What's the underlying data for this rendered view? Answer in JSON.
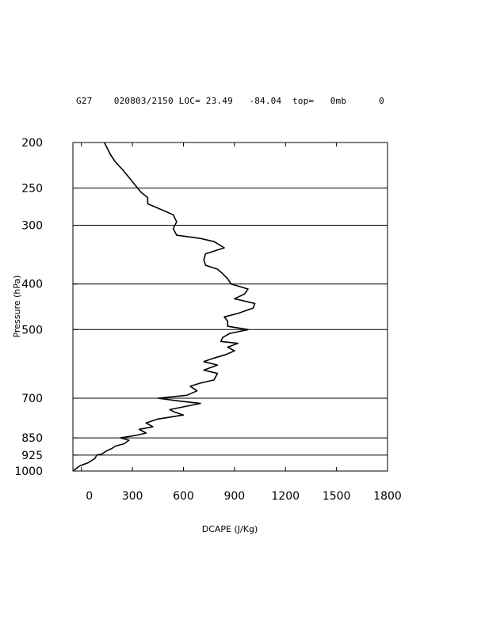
{
  "header": {
    "station": "G27",
    "datetime": "020803/2150",
    "loc_label": "LOC=",
    "lat": "23.49",
    "lon": "-84.04",
    "top_label": "top=",
    "top_value": "0mb",
    "trailing": "0"
  },
  "chart_data": {
    "type": "line",
    "title": "",
    "xlabel": "DCAPE (J/Kg)",
    "ylabel": "Pressure (hPa)",
    "xlim": [
      -50,
      1800
    ],
    "ylim": [
      1000,
      200
    ],
    "y_scale": "log",
    "x_ticks": [
      0,
      300,
      600,
      900,
      1200,
      1500,
      1800
    ],
    "x_tick_labels": [
      "0",
      "300",
      "600",
      "900",
      "1200",
      "1500",
      "1800"
    ],
    "y_ticks": [
      200,
      250,
      300,
      400,
      500,
      700,
      850,
      925,
      1000
    ],
    "y_tick_labels": [
      "200",
      "250",
      "300",
      "400",
      "500",
      "700",
      "850",
      "925",
      "1000"
    ],
    "gridlines_y": [
      250,
      300,
      400,
      500,
      700,
      850,
      925
    ],
    "series": [
      {
        "name": "",
        "color": "#000000",
        "points": [
          [
            -50,
            1000
          ],
          [
            -10,
            975
          ],
          [
            40,
            960
          ],
          [
            60,
            950
          ],
          [
            80,
            940
          ],
          [
            90,
            925
          ],
          [
            120,
            920
          ],
          [
            150,
            905
          ],
          [
            180,
            895
          ],
          [
            200,
            885
          ],
          [
            250,
            875
          ],
          [
            280,
            860
          ],
          [
            230,
            850
          ],
          [
            320,
            840
          ],
          [
            380,
            830
          ],
          [
            340,
            815
          ],
          [
            420,
            805
          ],
          [
            380,
            790
          ],
          [
            450,
            775
          ],
          [
            600,
            760
          ],
          [
            550,
            750
          ],
          [
            520,
            740
          ],
          [
            600,
            730
          ],
          [
            700,
            718
          ],
          [
            580,
            710
          ],
          [
            450,
            700
          ],
          [
            620,
            690
          ],
          [
            680,
            675
          ],
          [
            640,
            660
          ],
          [
            700,
            650
          ],
          [
            780,
            640
          ],
          [
            800,
            620
          ],
          [
            720,
            610
          ],
          [
            800,
            595
          ],
          [
            720,
            585
          ],
          [
            780,
            575
          ],
          [
            850,
            565
          ],
          [
            900,
            555
          ],
          [
            860,
            545
          ],
          [
            920,
            535
          ],
          [
            820,
            530
          ],
          [
            830,
            520
          ],
          [
            870,
            510
          ],
          [
            980,
            500
          ],
          [
            860,
            492
          ],
          [
            860,
            480
          ],
          [
            840,
            470
          ],
          [
            920,
            462
          ],
          [
            1010,
            450
          ],
          [
            1020,
            440
          ],
          [
            900,
            430
          ],
          [
            960,
            420
          ],
          [
            980,
            410
          ],
          [
            880,
            400
          ],
          [
            860,
            390
          ],
          [
            830,
            380
          ],
          [
            800,
            372
          ],
          [
            730,
            365
          ],
          [
            720,
            355
          ],
          [
            730,
            345
          ],
          [
            840,
            335
          ],
          [
            780,
            325
          ],
          [
            700,
            320
          ],
          [
            560,
            315
          ],
          [
            540,
            305
          ],
          [
            560,
            295
          ],
          [
            540,
            285
          ],
          [
            390,
            270
          ],
          [
            390,
            262
          ],
          [
            350,
            255
          ],
          [
            310,
            245
          ],
          [
            270,
            235
          ],
          [
            240,
            228
          ],
          [
            200,
            220
          ],
          [
            170,
            212
          ],
          [
            150,
            205
          ],
          [
            135,
            200
          ]
        ]
      }
    ]
  }
}
